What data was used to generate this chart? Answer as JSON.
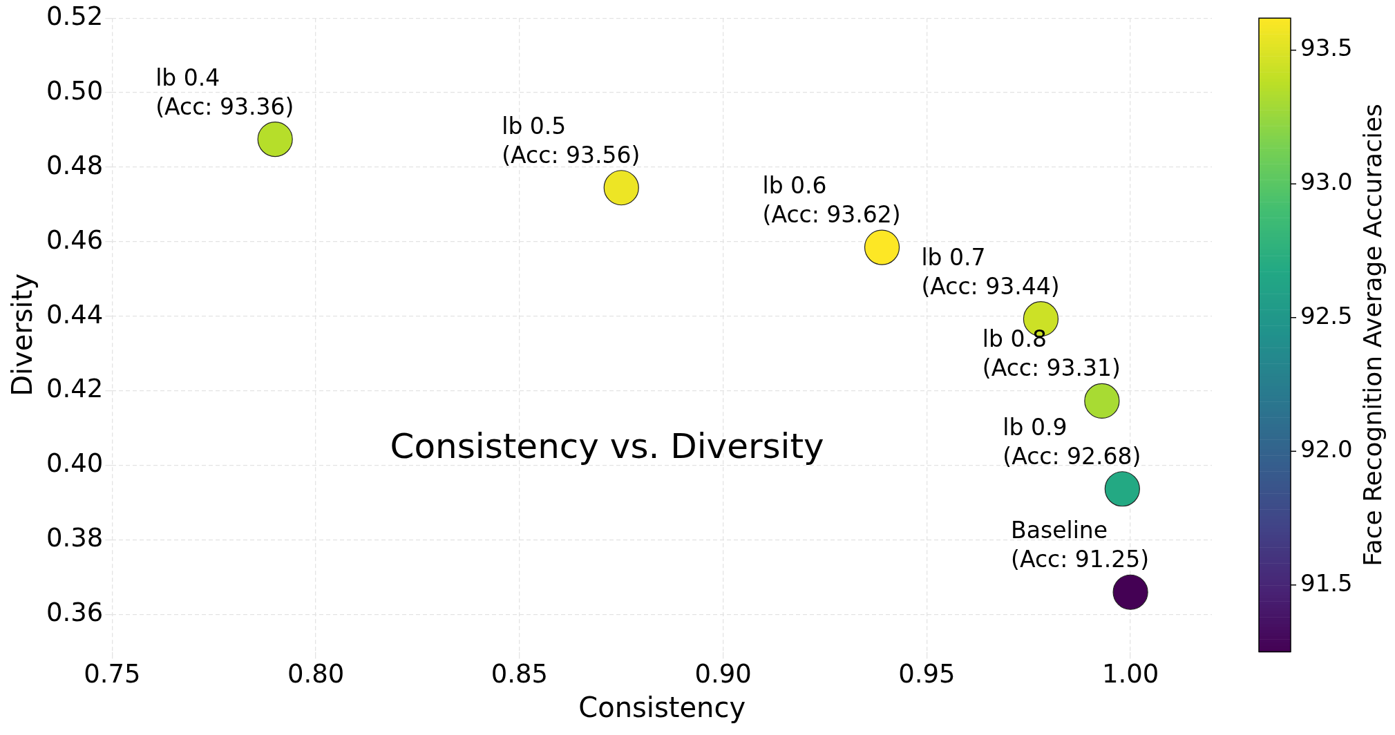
{
  "chart_data": {
    "type": "scatter",
    "title": "Consistency vs. Diversity",
    "xlabel": "Consistency",
    "ylabel": "Diversity",
    "clabel": "Face Recognition Average Accuracies",
    "x": [
      0.79,
      0.875,
      0.939,
      0.978,
      0.993,
      0.998,
      1.0
    ],
    "values": [
      0.4875,
      0.4745,
      0.4585,
      0.4393,
      0.4173,
      0.3937,
      0.366
    ],
    "cvalues": [
      93.36,
      93.56,
      93.62,
      93.44,
      93.31,
      92.68,
      91.25
    ],
    "xlim": [
      0.75,
      1.02
    ],
    "xticks": [
      0.75,
      {
        "value": 0.8,
        "label": "0.80"
      },
      0.85,
      {
        "value": 0.9,
        "label": "0.90"
      },
      0.95,
      {
        "value": 1.0,
        "label": "1.00"
      }
    ],
    "ylim": [
      0.35,
      0.52
    ],
    "yticks": [
      0.36,
      0.38,
      {
        "value": 0.4,
        "label": "0.40"
      },
      0.42,
      0.44,
      0.46,
      0.48,
      {
        "value": 0.5,
        "label": "0.50"
      },
      0.52
    ],
    "clim": [
      91.25,
      93.62
    ],
    "cticks": [
      91.5,
      {
        "value": 92,
        "label": "92.0"
      },
      92.5,
      {
        "value": 93,
        "label": "93.0"
      },
      93.5
    ],
    "grid": true,
    "legend": false,
    "marker": "circle",
    "annotations": [
      {
        "text": "lb 0.4\n(Acc: 93.36)",
        "x": 0.79,
        "y": 0.4875
      },
      {
        "text": "lb 0.5\n(Acc: 93.56)",
        "x": 0.875,
        "y": 0.4745
      },
      {
        "text": "lb 0.6\n(Acc: 93.62)",
        "x": 0.939,
        "y": 0.4585
      },
      {
        "text": "lb 0.7\n(Acc: 93.44)",
        "x": 0.978,
        "y": 0.4393
      },
      {
        "text": "lb 0.8\n(Acc: 93.31)",
        "x": 0.993,
        "y": 0.4173
      },
      {
        "text": "lb 0.9\n(Acc: 92.68)",
        "x": 0.998,
        "y": 0.3937
      },
      {
        "text": "Baseline\n(Acc: 91.25)",
        "x": 1.0,
        "y": 0.366
      }
    ]
  }
}
